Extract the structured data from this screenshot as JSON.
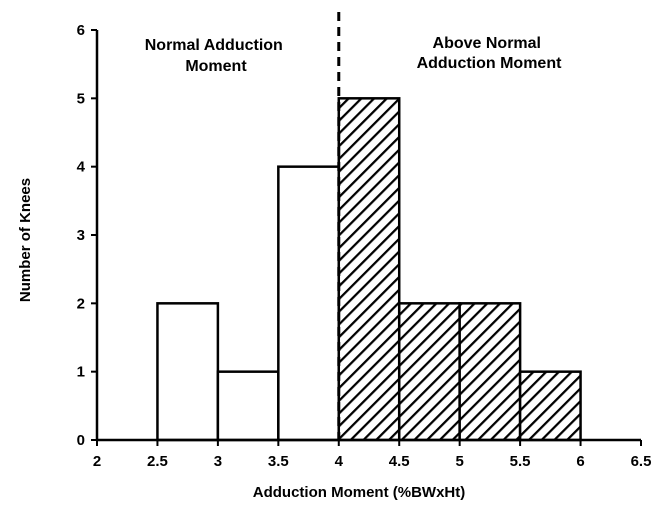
{
  "chart_data": {
    "type": "bar",
    "xlabel": "Adduction Moment (%BWxHt)",
    "ylabel": "Number of Knees",
    "xlim": [
      2,
      6.5
    ],
    "ylim": [
      0,
      6
    ],
    "x_ticks": [
      "2",
      "2.5",
      "3",
      "3.5",
      "4",
      "4.5",
      "5",
      "5.5",
      "6",
      "6.5"
    ],
    "y_ticks": [
      "0",
      "1",
      "2",
      "3",
      "4",
      "5",
      "6"
    ],
    "threshold_x": 4,
    "bins": [
      {
        "x0": 2.5,
        "x1": 3.0,
        "value": 2,
        "group": "normal"
      },
      {
        "x0": 3.0,
        "x1": 3.5,
        "value": 1,
        "group": "normal"
      },
      {
        "x0": 3.5,
        "x1": 4.0,
        "value": 4,
        "group": "normal"
      },
      {
        "x0": 4.0,
        "x1": 4.5,
        "value": 5,
        "group": "above"
      },
      {
        "x0": 4.5,
        "x1": 5.0,
        "value": 2,
        "group": "above"
      },
      {
        "x0": 5.0,
        "x1": 5.5,
        "value": 2,
        "group": "above"
      },
      {
        "x0": 5.5,
        "x1": 6.0,
        "value": 1,
        "group": "above"
      }
    ],
    "annotations": {
      "normal": [
        "Normal Adduction",
        "Moment"
      ],
      "above": [
        "Above Normal",
        "Adduction Moment"
      ]
    },
    "colors": {
      "normal_fill": "#ffffff",
      "above_hatch": "#000000",
      "stroke": "#000000"
    }
  }
}
